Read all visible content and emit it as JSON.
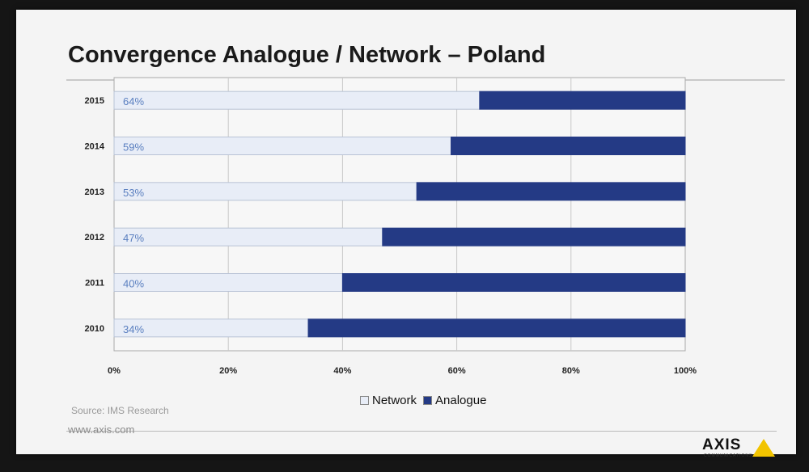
{
  "slide": {
    "title": "Convergence Analogue / Network – Poland",
    "source": "Source: IMS Research",
    "url": "www.axis.com",
    "logo_text": "AXIS",
    "logo_sub": "COMMUNICATIONS"
  },
  "chart_data": {
    "type": "bar",
    "orientation": "horizontal",
    "stacked": true,
    "categories": [
      "2015",
      "2014",
      "2013",
      "2012",
      "2011",
      "2010"
    ],
    "series": [
      {
        "name": "Network",
        "values": [
          64,
          59,
          53,
          47,
          40,
          34
        ],
        "color": "#e8edf7"
      },
      {
        "name": "Analogue",
        "values": [
          36,
          41,
          47,
          53,
          60,
          66
        ],
        "color": "#243a85"
      }
    ],
    "data_labels": [
      "64%",
      "59%",
      "53%",
      "47%",
      "40%",
      "34%"
    ],
    "x_ticks": [
      "0%",
      "20%",
      "40%",
      "60%",
      "80%",
      "100%"
    ],
    "xlim": [
      0,
      100
    ],
    "grid": true,
    "legend": "bottom",
    "label_color": "#5a7fc0"
  }
}
